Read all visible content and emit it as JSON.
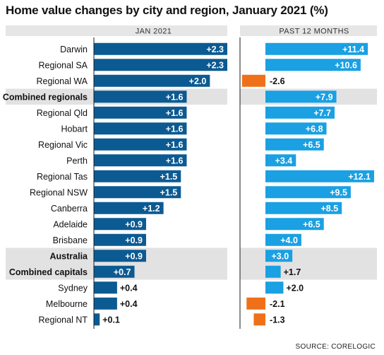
{
  "title": "Home value changes by city and region, January 2021 (%)",
  "source": "SOURCE: CORELOGIC",
  "colors": {
    "jan_bar": "#0c5a92",
    "annual_bar": "#1aa0e3",
    "negative_bar": "#f07019",
    "highlight_row": "#e2e2e2",
    "column_header_bg": "#e6e6e6",
    "rule": "#1a1a1a"
  },
  "chart_data": {
    "type": "bar",
    "orientation": "horizontal",
    "categories": [
      "Darwin",
      "Regional SA",
      "Regional WA",
      "Combined regionals",
      "Regional Qld",
      "Hobart",
      "Regional Vic",
      "Perth",
      "Regional Tas",
      "Regional NSW",
      "Canberra",
      "Adelaide",
      "Brisbane",
      "Australia",
      "Combined capitals",
      "Sydney",
      "Melbourne",
      "Regional NT"
    ],
    "highlighted": [
      "Combined regionals",
      "Australia",
      "Combined capitals"
    ],
    "series": [
      {
        "name": "JAN 2021",
        "values": [
          2.3,
          2.3,
          2.0,
          1.6,
          1.6,
          1.6,
          1.6,
          1.6,
          1.5,
          1.5,
          1.2,
          0.9,
          0.9,
          0.9,
          0.7,
          0.4,
          0.4,
          0.1
        ],
        "labels": [
          "+2.3",
          "+2.3",
          "+2.0",
          "+1.6",
          "+1.6",
          "+1.6",
          "+1.6",
          "+1.6",
          "+1.5",
          "+1.5",
          "+1.2",
          "+0.9",
          "+0.9",
          "+0.9",
          "+0.7",
          "+0.4",
          "+0.4",
          "+0.1"
        ]
      },
      {
        "name": "PAST 12 MONTHS",
        "values": [
          11.4,
          10.6,
          -2.6,
          7.9,
          7.7,
          6.8,
          6.5,
          3.4,
          12.1,
          9.5,
          8.5,
          6.5,
          4.0,
          3.0,
          1.7,
          2.0,
          -2.1,
          -1.3
        ],
        "labels": [
          "+11.4",
          "+10.6",
          "-2.6",
          "+7.9",
          "+7.7",
          "+6.8",
          "+6.5",
          "+3.4",
          "+12.1",
          "+9.5",
          "+8.5",
          "+6.5",
          "+4.0",
          "+3.0",
          "+1.7",
          "+2.0",
          "-2.1",
          "-1.3"
        ]
      }
    ],
    "xlim": [
      [
        0,
        2.3
      ],
      [
        -2.6,
        12.1
      ]
    ],
    "grid": false,
    "legend": "none"
  }
}
